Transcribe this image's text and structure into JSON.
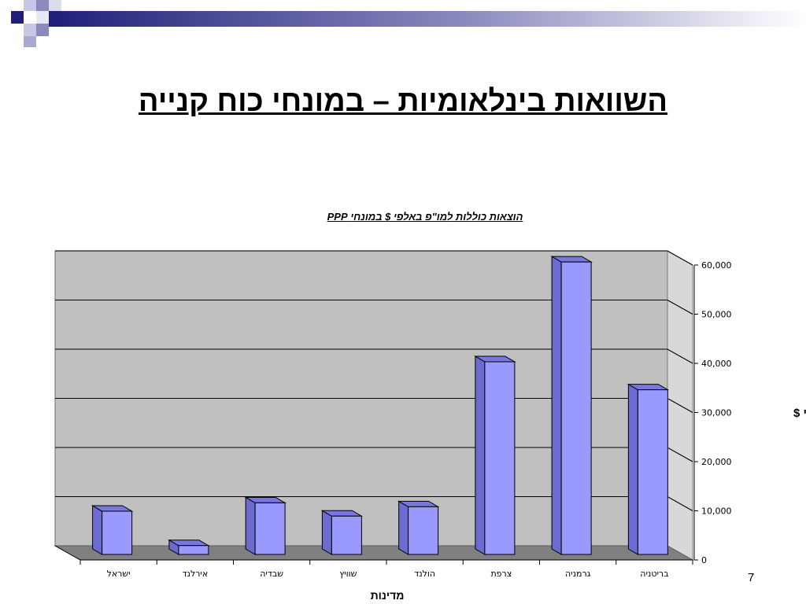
{
  "slide": {
    "title": "השוואות בינלאומיות – במונחי כוח קנייה",
    "page_number": "7"
  },
  "colors": {
    "bar_front": "#9999ff",
    "bar_side": "#6b6bd0",
    "bar_top": "#7777dd",
    "plot_back": "#c0c0c0",
    "plot_wall": "#d8d8d8",
    "plot_floor": "#808080",
    "deco_navy": "#1f1f7a"
  },
  "chart_data": {
    "type": "bar",
    "title": "הוצאות כוללות למו\"פ באלפי $ במונחי PPP",
    "xlabel": "מדינות",
    "ylabel": "אלפי $",
    "ylim": [
      0,
      60000
    ],
    "yticks": [
      "0",
      "10,000",
      "20,000",
      "30,000",
      "40,000",
      "50,000",
      "60,000"
    ],
    "grid": true,
    "categories": [
      "ישראל",
      "אירלנד",
      "שבדיה",
      "שוויץ",
      "הולנד",
      "צרפת",
      "גרמניה",
      "בריטניה"
    ],
    "values": [
      8800,
      1800,
      10500,
      7800,
      9700,
      39200,
      59500,
      33500
    ]
  }
}
